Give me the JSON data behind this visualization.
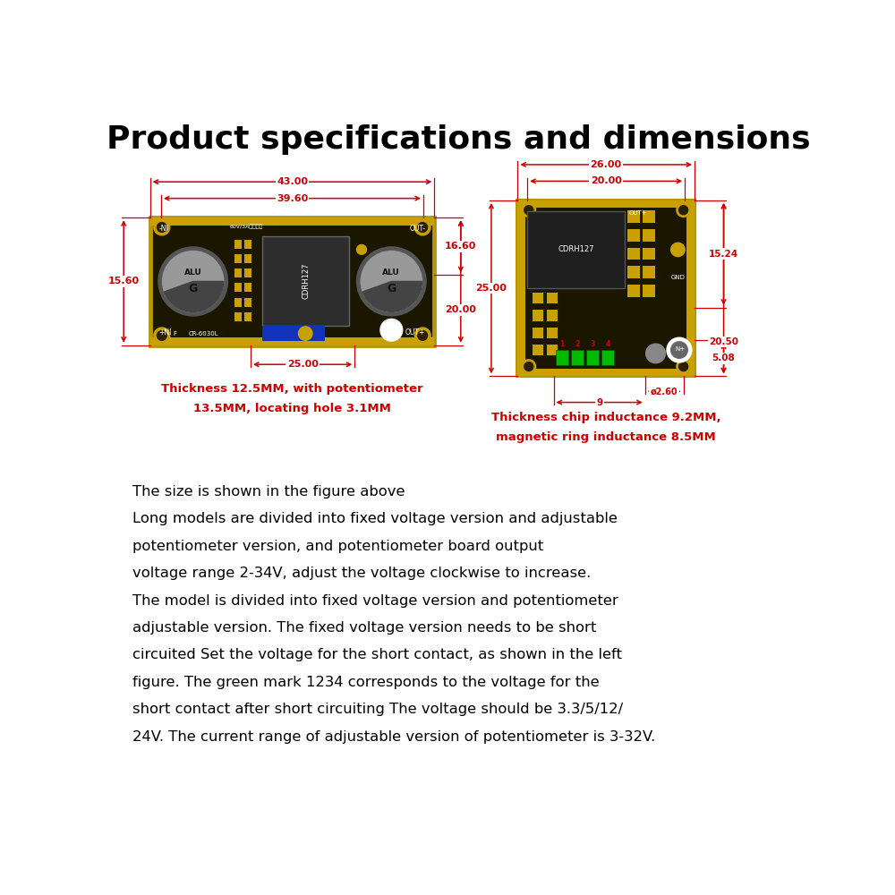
{
  "title": "Product specifications and dimensions",
  "title_fontsize": 26,
  "title_fontweight": "bold",
  "bg_color": "#ffffff",
  "text_color": "#000000",
  "red_color": "#cc0000",
  "body_text": [
    "The size is shown in the figure above",
    "Long models are divided into fixed voltage version and adjustable",
    "potentiometer version, and potentiometer board output",
    "voltage range 2-34V, adjust the voltage clockwise to increase.",
    "The model is divided into fixed voltage version and potentiometer",
    "adjustable version. The fixed voltage version needs to be short",
    "circuited Set the voltage for the short contact, as shown in the left",
    "figure. The green mark 1234 corresponds to the voltage for the",
    "short contact after short circuiting The voltage should be 3.3/5/12/",
    "24V. The current range of adjustable version of potentiometer is 3-32V."
  ],
  "left_caption_line1": "Thickness 12.5MM, with potentiometer",
  "left_caption_line2": "13.5MM, locating hole 3.1MM",
  "right_caption_line1": "Thickness chip inductance 9.2MM,",
  "right_caption_line2": "magnetic ring inductance 8.5MM"
}
